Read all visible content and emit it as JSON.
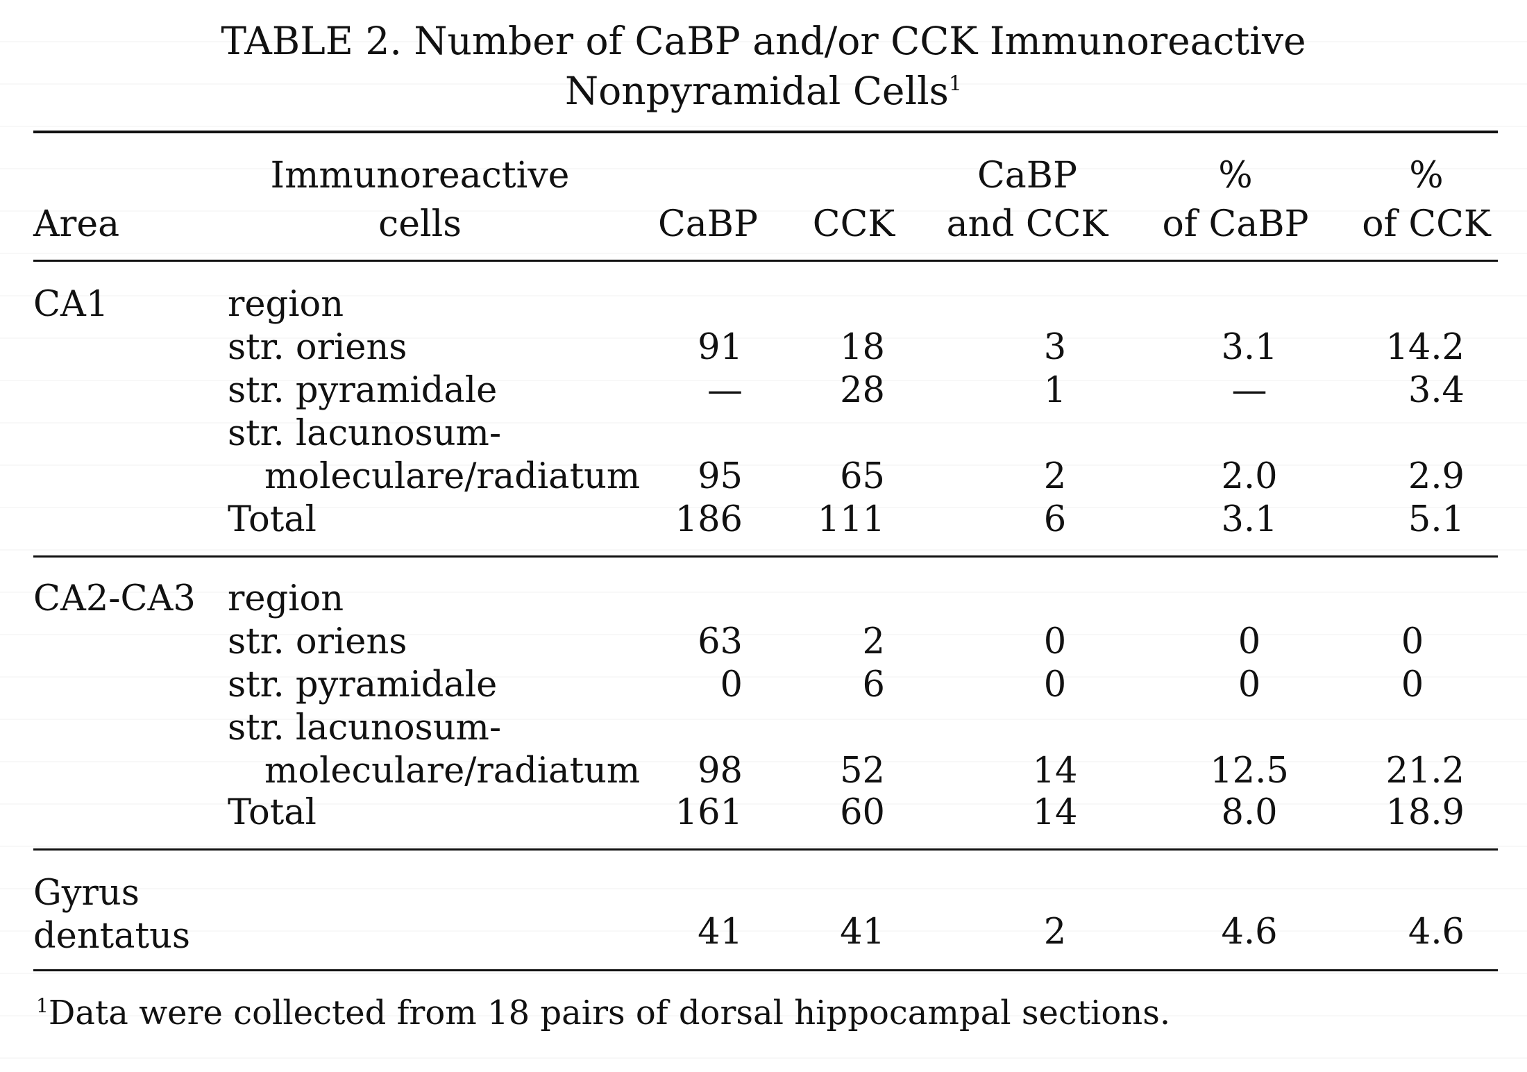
{
  "title": {
    "line1": "TABLE 2.  Number of CaBP and/or CCK Immunoreactive",
    "line2": "Nonpyramidal Cells",
    "footnote_marker": "1"
  },
  "columns": {
    "area": "Area",
    "cells_line1": "Immunoreactive",
    "cells_line2": "cells",
    "cabp": "CaBP",
    "cck": "CCK",
    "both_line1": "CaBP",
    "both_line2": "and CCK",
    "pc_cabp_line1": "%",
    "pc_cabp_line2": "of CaBP",
    "pc_cck_line1": "%",
    "pc_cck_line2": "of CCK"
  },
  "sections": [
    {
      "area": "CA1",
      "region_label": "region",
      "rows": [
        {
          "cells": "str. oriens",
          "cabp": "91",
          "cck": "18",
          "both": "3",
          "pc_cabp": "3.1",
          "pc_cck": "14.2"
        },
        {
          "cells": "str. pyramidale",
          "cabp": "—",
          "cck": "28",
          "both": "1",
          "pc_cabp": "—",
          "pc_cck": "3.4"
        },
        {
          "cells_line1": "str. lacunosum-",
          "cells": "moleculare/radiatum",
          "cabp": "95",
          "cck": "65",
          "both": "2",
          "pc_cabp": "2.0",
          "pc_cck": "2.9"
        },
        {
          "cells": "Total",
          "cabp": "186",
          "cck": "111",
          "both": "6",
          "pc_cabp": "3.1",
          "pc_cck": "5.1"
        }
      ]
    },
    {
      "area": "CA2-CA3",
      "region_label": "region",
      "rows": [
        {
          "cells": "str. oriens",
          "cabp": "63",
          "cck": "2",
          "both": "0",
          "pc_cabp": "0",
          "pc_cck": "0"
        },
        {
          "cells": "str. pyramidale",
          "cabp": "0",
          "cck": "6",
          "both": "0",
          "pc_cabp": "0",
          "pc_cck": "0"
        },
        {
          "cells_line1": "str. lacunosum-",
          "cells": "moleculare/radiatum",
          "cabp": "98",
          "cck": "52",
          "both": "14",
          "pc_cabp": "12.5",
          "pc_cck": "21.2"
        },
        {
          "cells": "Total",
          "cabp": "161",
          "cck": "60",
          "both": "14",
          "pc_cabp": "8.0",
          "pc_cck": "18.9"
        }
      ]
    },
    {
      "area_line1": "Gyrus",
      "area_line2": "dentatus",
      "rows": [
        {
          "cabp": "41",
          "cck": "41",
          "both": "2",
          "pc_cabp": "4.6",
          "pc_cck": "4.6"
        }
      ]
    }
  ],
  "footnote": {
    "marker": "1",
    "text": "Data were collected from 18 pairs of dorsal hippocampal sections."
  }
}
